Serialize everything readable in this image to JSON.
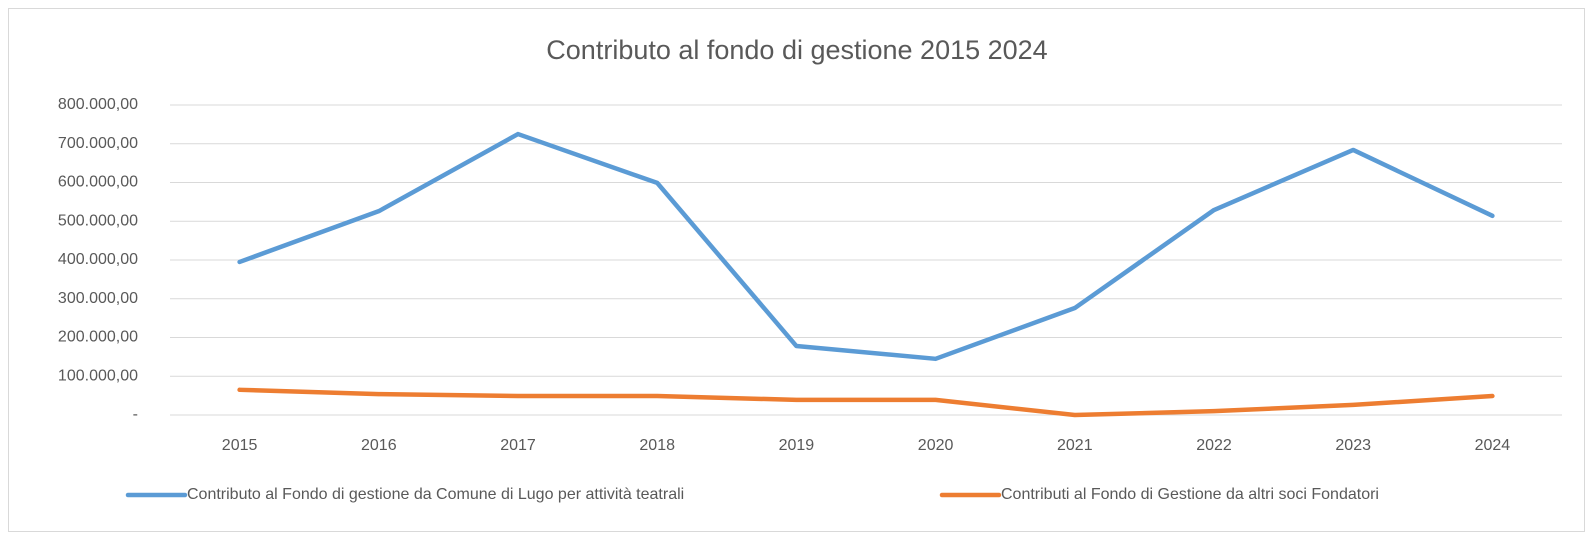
{
  "chart_data": {
    "type": "line",
    "title": "Contributo al fondo di gestione 2015 2024",
    "categories": [
      "2015",
      "2016",
      "2017",
      "2018",
      "2019",
      "2020",
      "2021",
      "2022",
      "2023",
      "2024"
    ],
    "series": [
      {
        "name": "Contributo al Fondo di gestione da Comune di Lugo per attività teatrali",
        "color": "#5b9bd5",
        "values": [
          395000,
          526000,
          725000,
          599000,
          178000,
          145000,
          276000,
          529000,
          684000,
          514000
        ]
      },
      {
        "name": "Contributi al Fondo di Gestione da altri soci Fondatori",
        "color": "#ed7d31",
        "values": [
          65000,
          54000,
          49000,
          49000,
          39000,
          39000,
          0,
          10000,
          26000,
          49000
        ]
      }
    ],
    "ylim": [
      0,
      800000
    ],
    "yticks": [
      {
        "value": 0,
        "label": "-"
      },
      {
        "value": 100000,
        "label": "100.000,00"
      },
      {
        "value": 200000,
        "label": "200.000,00"
      },
      {
        "value": 300000,
        "label": "300.000,00"
      },
      {
        "value": 400000,
        "label": "400.000,00"
      },
      {
        "value": 500000,
        "label": "500.000,00"
      },
      {
        "value": 600000,
        "label": "600.000,00"
      },
      {
        "value": 700000,
        "label": "700.000,00"
      },
      {
        "value": 800000,
        "label": "800.000,00"
      }
    ],
    "grid": true,
    "legend": "bottom"
  }
}
